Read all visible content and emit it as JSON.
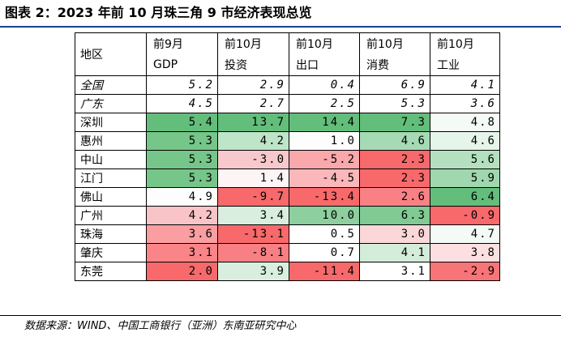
{
  "title": "图表 2：2023 年前 10 月珠三角 9 市经济表现总览",
  "header": {
    "region_label": "地区",
    "columns": [
      {
        "top": "前9月",
        "bottom": "GDP"
      },
      {
        "top": "前10月",
        "bottom": "投资"
      },
      {
        "top": "前10月",
        "bottom": "出口"
      },
      {
        "top": "前10月",
        "bottom": "消费"
      },
      {
        "top": "前10月",
        "bottom": "工业"
      }
    ]
  },
  "rows": [
    {
      "region": "全国",
      "italic": true,
      "values": [
        "5.2",
        "2.9",
        "0.4",
        "6.9",
        "4.1"
      ],
      "colors": [
        "#ffffff",
        "#ffffff",
        "#ffffff",
        "#ffffff",
        "#ffffff"
      ]
    },
    {
      "region": "广东",
      "italic": true,
      "values": [
        "4.5",
        "2.7",
        "2.5",
        "5.3",
        "3.6"
      ],
      "colors": [
        "#ffffff",
        "#ffffff",
        "#ffffff",
        "#ffffff",
        "#ffffff"
      ]
    },
    {
      "region": "深圳",
      "italic": false,
      "values": [
        "5.4",
        "13.7",
        "14.4",
        "7.3",
        "4.8"
      ],
      "colors": [
        "#63be7b",
        "#63be7b",
        "#63be7b",
        "#63be7b",
        "#f4fbf6"
      ]
    },
    {
      "region": "惠州",
      "italic": false,
      "values": [
        "5.3",
        "4.2",
        "1.0",
        "4.6",
        "4.6"
      ],
      "colors": [
        "#76c68a",
        "#bfe5c9",
        "#fdfdfd",
        "#a6dab4",
        "#e6f5ea"
      ]
    },
    {
      "region": "中山",
      "italic": false,
      "values": [
        "5.3",
        "-3.0",
        "-5.2",
        "2.3",
        "5.6"
      ],
      "colors": [
        "#76c68a",
        "#f8c9cc",
        "#f9a8ac",
        "#f8696b",
        "#b4e0c0"
      ]
    },
    {
      "region": "江门",
      "italic": false,
      "values": [
        "5.3",
        "1.4",
        "-4.5",
        "2.3",
        "5.9"
      ],
      "colors": [
        "#76c68a",
        "#fdf4f5",
        "#fab8bb",
        "#f8696b",
        "#a0d7ae"
      ]
    },
    {
      "region": "佛山",
      "italic": false,
      "values": [
        "4.9",
        "-9.7",
        "-13.4",
        "2.6",
        "6.4"
      ],
      "colors": [
        "#fdfdfd",
        "#f8696b",
        "#f8696b",
        "#f98185",
        "#63be7b"
      ]
    },
    {
      "region": "广州",
      "italic": false,
      "values": [
        "4.2",
        "3.4",
        "10.0",
        "6.3",
        "-0.9"
      ],
      "colors": [
        "#f9c4c7",
        "#d9eedf",
        "#8dcf9e",
        "#81ca94",
        "#f8696b"
      ]
    },
    {
      "region": "珠海",
      "italic": false,
      "values": [
        "3.6",
        "-13.1",
        "0.5",
        "3.0",
        "4.7"
      ],
      "colors": [
        "#fa9ea2",
        "#f8696b",
        "#ffffff",
        "#fcd7d9",
        "#f4fbf6"
      ]
    },
    {
      "region": "肇庆",
      "italic": false,
      "values": [
        "3.1",
        "-8.1",
        "0.7",
        "4.1",
        "3.8"
      ],
      "colors": [
        "#f98589",
        "#f87f83",
        "#ffffff",
        "#d4ecda",
        "#fcdfe0"
      ]
    },
    {
      "region": "东莞",
      "italic": false,
      "values": [
        "2.0",
        "3.9",
        "-11.4",
        "3.1",
        "-2.9"
      ],
      "colors": [
        "#f8696b",
        "#d9eedf",
        "#f8696b",
        "#ffffff",
        "#f87477"
      ]
    }
  ],
  "source": "数据来源：WIND、中国工商银行（亚洲）东南亚研究中心"
}
